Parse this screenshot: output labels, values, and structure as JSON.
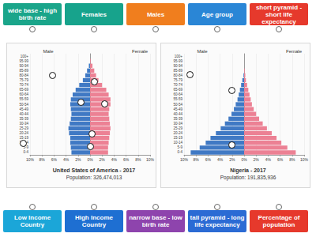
{
  "top_labels": [
    {
      "text": "wide base - high birth rate",
      "color": "#1aa58a"
    },
    {
      "text": "Females",
      "color": "#17a38c"
    },
    {
      "text": "Males",
      "color": "#f07e1e"
    },
    {
      "text": "Age group",
      "color": "#2a86d6"
    },
    {
      "text": "short pyramid - short life expectancy",
      "color": "#e6392c"
    }
  ],
  "bottom_labels": [
    {
      "text": "Low Income Country",
      "color": "#1ba6d8"
    },
    {
      "text": "High Income Country",
      "color": "#1e6fd2"
    },
    {
      "text": "narrow base - low birth rate",
      "color": "#8e44ad"
    },
    {
      "text": "tall pyramid - long life expectancy",
      "color": "#2b6bd4"
    },
    {
      "text": "Percentage of population",
      "color": "#e6392c"
    }
  ],
  "chart_data": [
    {
      "type": "bar",
      "orientation": "horizontal",
      "title": "United States of America - 2017",
      "subtitle": "Population: 326,474,013",
      "categories": [
        "0-4",
        "5-9",
        "10-14",
        "15-19",
        "20-24",
        "25-29",
        "30-34",
        "35-39",
        "40-44",
        "45-49",
        "50-54",
        "55-59",
        "60-64",
        "65-69",
        "70-74",
        "75-79",
        "80-84",
        "85-89",
        "90-94",
        "95-99",
        "100+"
      ],
      "series": [
        {
          "name": "Male",
          "color": "#4079c4",
          "values": [
            3.1,
            3.2,
            3.3,
            3.3,
            3.5,
            3.6,
            3.4,
            3.2,
            3.1,
            3.2,
            3.3,
            3.2,
            2.9,
            2.4,
            1.8,
            1.2,
            0.8,
            0.5,
            0.2,
            0.0,
            0.0
          ]
        },
        {
          "name": "Female",
          "color": "#ec8194",
          "values": [
            3.0,
            3.0,
            3.1,
            3.2,
            3.3,
            3.4,
            3.3,
            3.2,
            3.1,
            3.2,
            3.4,
            3.4,
            3.1,
            2.7,
            2.0,
            1.4,
            1.0,
            0.7,
            0.4,
            0.1,
            0.0
          ]
        }
      ],
      "xlim": [
        0,
        10
      ],
      "xticks": [
        {
          "value": 0,
          "label": "0%"
        },
        {
          "value": 2,
          "label": "2%"
        },
        {
          "value": 4,
          "label": "4%"
        },
        {
          "value": 6,
          "label": "6%"
        },
        {
          "value": 8,
          "label": "8%"
        },
        {
          "value": 10,
          "label": "10%"
        }
      ],
      "grid": true
    },
    {
      "type": "bar",
      "orientation": "horizontal",
      "title": "Nigeria - 2017",
      "subtitle": "Population: 191,835,936",
      "categories": [
        "0-4",
        "5-9",
        "10-14",
        "15-19",
        "20-24",
        "25-29",
        "30-34",
        "35-39",
        "40-44",
        "45-49",
        "50-54",
        "55-59",
        "60-64",
        "65-69",
        "70-74",
        "75-79",
        "80-84",
        "85-89",
        "90-94",
        "95-99",
        "100+"
      ],
      "series": [
        {
          "name": "Male",
          "color": "#4079c4",
          "values": [
            8.9,
            7.4,
            6.4,
            5.6,
            4.7,
            3.9,
            3.2,
            2.6,
            2.1,
            1.7,
            1.4,
            1.1,
            0.9,
            0.7,
            0.5,
            0.3,
            0.1,
            0.0,
            0.0,
            0.0,
            0.0
          ]
        },
        {
          "name": "Female",
          "color": "#ec8194",
          "values": [
            8.6,
            7.2,
            6.2,
            5.4,
            4.6,
            3.8,
            3.1,
            2.5,
            2.0,
            1.6,
            1.3,
            1.1,
            0.9,
            0.7,
            0.5,
            0.3,
            0.2,
            0.1,
            0.0,
            0.0,
            0.0
          ]
        }
      ],
      "xlim": [
        0,
        10
      ],
      "xticks": [
        {
          "value": 0,
          "label": "0%"
        },
        {
          "value": 2,
          "label": "2%"
        },
        {
          "value": 4,
          "label": "4%"
        },
        {
          "value": 6,
          "label": "6%"
        },
        {
          "value": 8,
          "label": "8%"
        },
        {
          "value": 10,
          "label": "10%"
        }
      ],
      "grid": true
    }
  ]
}
